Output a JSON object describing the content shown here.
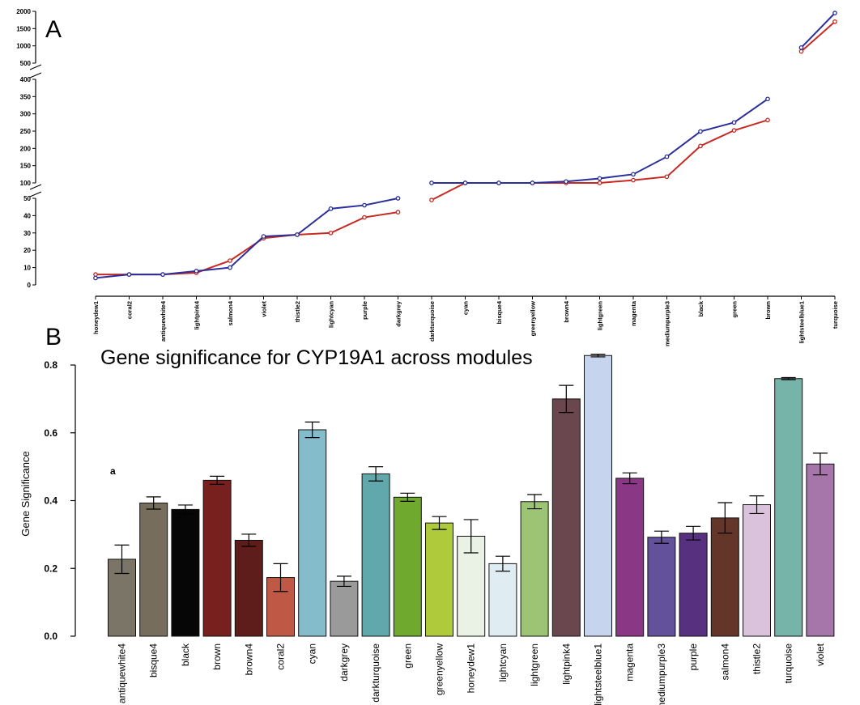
{
  "figure": {
    "panel_a_label": "A",
    "panel_b_label": "B"
  },
  "chart_data": [
    {
      "type": "line",
      "title": "",
      "xlabel": "",
      "ylabel": "",
      "broken_y_axis": true,
      "y_segments": [
        [
          0,
          50
        ],
        [
          100,
          400
        ],
        [
          500,
          2000
        ]
      ],
      "y_ticks": [
        0,
        10,
        20,
        30,
        40,
        50,
        100,
        150,
        200,
        250,
        300,
        350,
        400,
        500,
        1000,
        1500,
        2000
      ],
      "categories": [
        "honeydew1",
        "coral2",
        "antiquewhite4",
        "lightpink4",
        "salmon4",
        "violet",
        "thistle2",
        "lightcyan",
        "purple",
        "darkgrey",
        "darkturquoise",
        "cyan",
        "bisque4",
        "greenyellow",
        "brown4",
        "lightgreen",
        "magenta",
        "mediumpurple3",
        "black",
        "green",
        "brown",
        "lightsteelblue1",
        "turquoise"
      ],
      "groups": [
        [
          0,
          9
        ],
        [
          10,
          20
        ],
        [
          21,
          22
        ]
      ],
      "series": [
        {
          "color": "#2b2f9a",
          "values": [
            4,
            6,
            6,
            8,
            10,
            28,
            29,
            44,
            46,
            50,
            55,
            62,
            62,
            67,
            104,
            113,
            125,
            176,
            249,
            275,
            343,
            950,
            1950
          ]
        },
        {
          "color": "#c62a22",
          "values": [
            6,
            6,
            6,
            7,
            14,
            27,
            29,
            30,
            39,
            42,
            49,
            53,
            58,
            63,
            82,
            89,
            108,
            118,
            207,
            252,
            282,
            840,
            1700
          ]
        }
      ],
      "grid": false
    },
    {
      "type": "bar",
      "title": "Gene significance for CYP19A1 across modules",
      "xlabel": "",
      "ylabel": "Gene Significance",
      "ylim": [
        0,
        0.8
      ],
      "y_ticks": [
        "0.0",
        "0.2",
        "0.4",
        "0.6",
        "0.8"
      ],
      "annotation": "a",
      "categories": [
        "antiquewhite4",
        "bisque4",
        "black",
        "brown",
        "brown4",
        "coral2",
        "cyan",
        "darkgrey",
        "darkturquoise",
        "green",
        "greenyellow",
        "honeydew1",
        "lightcyan",
        "lightgreen",
        "lightpink4",
        "lightsteelblue1",
        "magenta",
        "mediumpurple3",
        "purple",
        "salmon4",
        "thistle2",
        "turquoise",
        "violet"
      ],
      "values": [
        0.227,
        0.393,
        0.374,
        0.46,
        0.283,
        0.173,
        0.609,
        0.162,
        0.479,
        0.41,
        0.334,
        0.295,
        0.214,
        0.397,
        0.7,
        0.828,
        0.466,
        0.292,
        0.304,
        0.349,
        0.388,
        0.76,
        0.508
      ],
      "errors": [
        0.042,
        0.018,
        0.013,
        0.012,
        0.018,
        0.041,
        0.023,
        0.015,
        0.021,
        0.012,
        0.019,
        0.049,
        0.022,
        0.021,
        0.04,
        0.004,
        0.016,
        0.018,
        0.02,
        0.045,
        0.026,
        0.003,
        0.032
      ],
      "colors": [
        "#7b7567",
        "#776d5c",
        "#060606",
        "#78201e",
        "#5e1c1b",
        "#bf5845",
        "#85bccb",
        "#9a9a9a",
        "#61a8ac",
        "#6fa92d",
        "#afcb3c",
        "#eaf2e6",
        "#dfedf2",
        "#9cc474",
        "#6a464e",
        "#c7d4ed",
        "#8a3786",
        "#63519b",
        "#57307f",
        "#643629",
        "#dbc2dc",
        "#76b4a9",
        "#a675a9"
      ],
      "grid": false
    }
  ]
}
